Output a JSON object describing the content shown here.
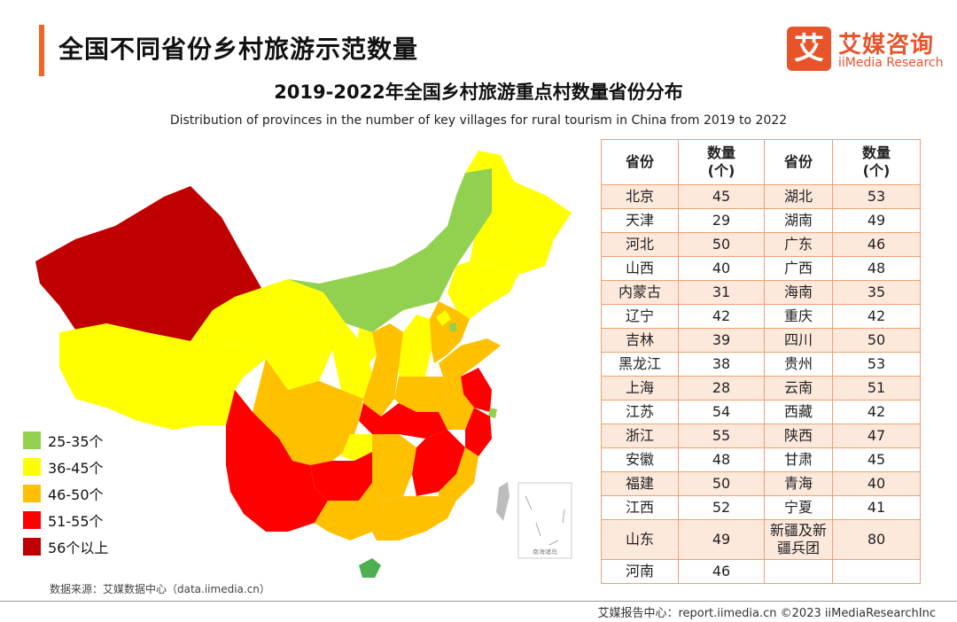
{
  "header": {
    "title": "全国不同省份乡村旅游示范数量",
    "logo_mark": "艾",
    "logo_cn": "艾媒咨询",
    "logo_en": "iiMedia Research"
  },
  "chart_data": [
    {
      "type": "choropleth-map",
      "title": "2019-2022年全国乡村旅游重点村数量省份分布",
      "subtitle": "Distribution of provinces  in  the number of key villages  for rural  tourism in China from 2019 to 2022",
      "legend": [
        {
          "label": "25-35个",
          "color": "#92d050"
        },
        {
          "label": "36-45个",
          "color": "#ffff00"
        },
        {
          "label": "46-50个",
          "color": "#ffc000"
        },
        {
          "label": "51-55个",
          "color": "#ff0000"
        },
        {
          "label": "56个以上",
          "color": "#c00000"
        }
      ],
      "inset_label": "南海诸岛",
      "source": "数据来源：艾媒数据中心（data.iimedia.cn）"
    },
    {
      "type": "table",
      "columns": [
        "省份",
        "数量（个）",
        "省份",
        "数量（个）"
      ],
      "col_headers": [
        [
          "省份"
        ],
        [
          "数量",
          "(个)"
        ],
        [
          "省份"
        ],
        [
          "数量",
          "(个)"
        ]
      ],
      "rows": [
        [
          "北京",
          "45",
          "湖北",
          "53"
        ],
        [
          "天津",
          "29",
          "湖南",
          "49"
        ],
        [
          "河北",
          "50",
          "广东",
          "46"
        ],
        [
          "山西",
          "40",
          "广西",
          "48"
        ],
        [
          "内蒙古",
          "31",
          "海南",
          "35"
        ],
        [
          "辽宁",
          "42",
          "重庆",
          "42"
        ],
        [
          "吉林",
          "39",
          "四川",
          "50"
        ],
        [
          "黑龙江",
          "38",
          "贵州",
          "53"
        ],
        [
          "上海",
          "28",
          "云南",
          "51"
        ],
        [
          "江苏",
          "54",
          "西藏",
          "42"
        ],
        [
          "浙江",
          "55",
          "陕西",
          "47"
        ],
        [
          "安徽",
          "48",
          "甘肃",
          "45"
        ],
        [
          "福建",
          "50",
          "青海",
          "40"
        ],
        [
          "江西",
          "52",
          "宁夏",
          "41"
        ],
        [
          "山东",
          "49",
          "新疆及新疆兵团",
          "80"
        ],
        [
          "河南",
          "46",
          "",
          ""
        ]
      ],
      "row_labels": [
        "新疆及新",
        "疆兵团"
      ]
    }
  ],
  "footer": {
    "text": "艾媒报告中心：report.iimedia.cn   ©2023 iiMediaResearchInc"
  }
}
